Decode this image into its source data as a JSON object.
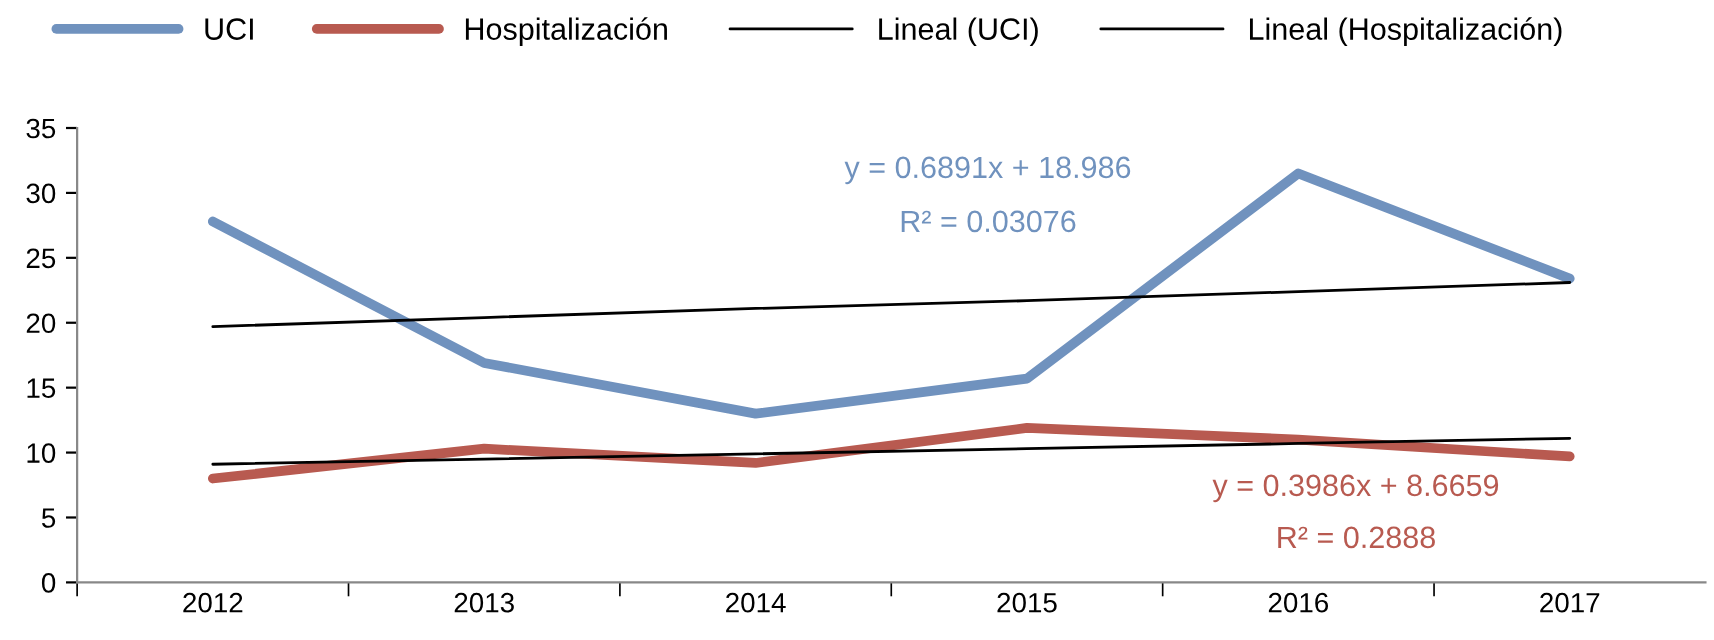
{
  "chart_data": {
    "type": "line",
    "categories": [
      "2012",
      "2013",
      "2014",
      "2015",
      "2016",
      "2017"
    ],
    "series": [
      {
        "name": "UCI",
        "color": "#7092be",
        "values": [
          27.8,
          16.9,
          13.0,
          15.7,
          31.5,
          23.4
        ]
      },
      {
        "name": "Hospitalización",
        "color": "#b85a50",
        "values": [
          8.0,
          10.3,
          9.2,
          11.9,
          11.0,
          9.7
        ]
      },
      {
        "name": "Lineal (UCI)",
        "color": "#000000",
        "values": [
          19.7,
          20.4,
          21.1,
          21.7,
          22.4,
          23.1
        ]
      },
      {
        "name": "Lineal (Hospitalización)",
        "color": "#000000",
        "values": [
          9.1,
          9.5,
          9.9,
          10.3,
          10.7,
          11.1
        ]
      }
    ],
    "ylim": [
      0,
      35
    ],
    "yticks": [
      0,
      5,
      10,
      15,
      20,
      25,
      30,
      35
    ],
    "grid": false,
    "legend": "top",
    "marker": "none",
    "line_style": "solid",
    "annotations": [
      "y = 0.6891x + 18.986",
      "R² = 0.03076",
      "y = 0.3986x + 8.6659",
      "R² = 0.2888"
    ]
  }
}
